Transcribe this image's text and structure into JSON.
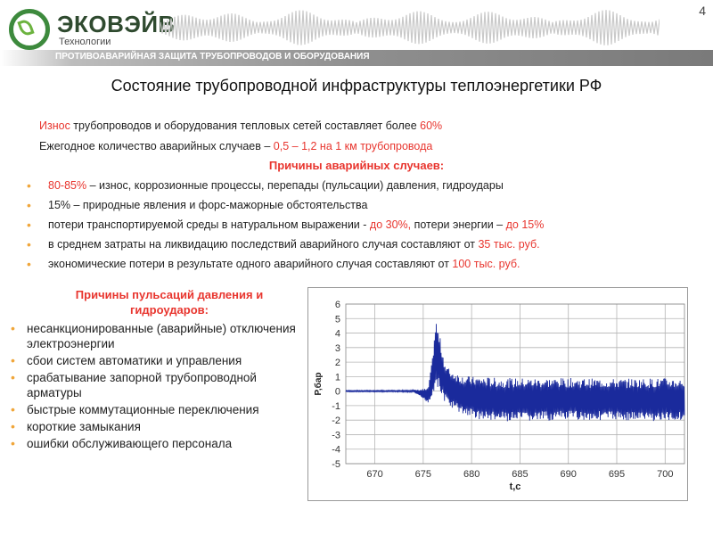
{
  "header": {
    "logo_name": "ЭКОВЭЙВ",
    "logo_sub": "Технологии",
    "page_number": "4",
    "ribbon_text": "ПРОТИВОАВАРИЙНАЯ ЗАЩИТА ТРУБОПРОВОДОВ И ОБОРУДОВАНИЯ"
  },
  "slide": {
    "title": "Состояние трубопроводной инфраструктуры теплоэнергетики РФ",
    "line1": {
      "a": "Износ",
      "b": " трубопроводов и оборудования тепловых сетей составляет более ",
      "c": "60%"
    },
    "line2": {
      "a": "Ежегодное количество аварийных случаев – ",
      "b": "0,5 – 1,2 на 1 км трубопровода"
    },
    "causes_heading": "Причины аварийных случаев:",
    "causes": [
      {
        "a": "80-85%",
        "b": " – износ, коррозионные процессы, перепады (пульсации) давления, гидроудары"
      },
      {
        "a": "15% – природные явления и форс-мажорные  обстоятельства"
      },
      {
        "a": "потери транспортируемой среды в натуральном выражении - ",
        "b": "до 30%,",
        "c": " потери энергии – ",
        "d": "до 15%"
      },
      {
        "a": " в среднем затраты на ликвидацию последствий аварийного случая составляют от ",
        "b": "35 тыс. руб."
      },
      {
        "a": "экономические потери в результате одного аварийного случая составляют от ",
        "b": "100",
        "c": " тыс. руб."
      }
    ],
    "pulsation_heading_1": "Причины пульсаций давления и",
    "pulsation_heading_2": "гидроударов:",
    "pulsation_causes": [
      "несанкционированные (аварийные) отключения электроэнергии",
      "сбои систем автоматики и управления",
      "срабатывание запорной трубопроводной арматуры",
      "быстрые коммутационные переключения",
      "короткие замыкания",
      "ошибки обслуживающего персонала"
    ]
  },
  "colors": {
    "accent_red": "#e8352e",
    "bullet": "#f0a63a",
    "signal": "#1a2a9c",
    "logo_green": "#3d8a3d"
  },
  "chart_data": {
    "type": "line",
    "xlabel": "t,c",
    "ylabel": "P,бар",
    "xlim": [
      667,
      702
    ],
    "ylim": [
      -5,
      6
    ],
    "xticks": [
      670,
      675,
      680,
      685,
      690,
      695,
      700
    ],
    "yticks": [
      6,
      5,
      4,
      3,
      2,
      1,
      0,
      -1,
      -2,
      -3,
      -4,
      -5
    ],
    "grid": true,
    "series": [
      {
        "x": [
          667,
          668,
          670,
          672,
          674,
          675.5,
          675.9,
          676.3,
          676.8,
          677.3,
          678,
          679,
          680,
          681,
          683,
          686,
          690,
          695,
          700,
          702
        ],
        "upper": [
          0.05,
          0.05,
          0.05,
          0.05,
          0.08,
          0.2,
          2.0,
          5.0,
          3.5,
          1.8,
          1.4,
          1.1,
          1.0,
          1.0,
          0.9,
          0.9,
          0.9,
          0.85,
          0.9,
          0.85
        ],
        "lower": [
          -0.05,
          -0.05,
          -0.05,
          -0.05,
          -0.08,
          -0.8,
          -0.5,
          0.5,
          -0.3,
          -0.8,
          -1.2,
          -1.6,
          -1.8,
          -2.0,
          -2.1,
          -2.1,
          -2.0,
          -2.0,
          -2.1,
          -2.0
        ]
      }
    ]
  }
}
